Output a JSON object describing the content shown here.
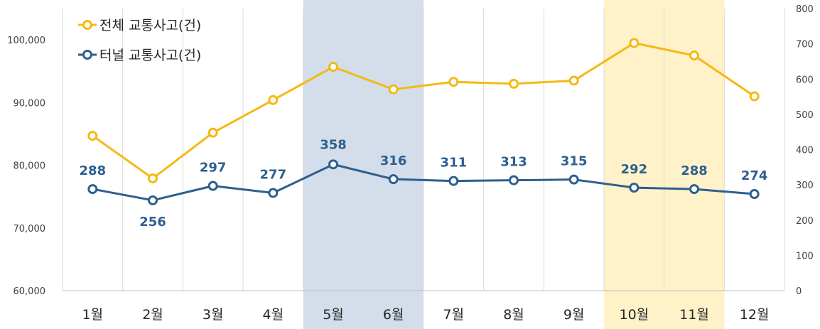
{
  "chart_data": {
    "type": "line",
    "title": "",
    "xlabel": "",
    "ylabel": "",
    "categories": [
      "1월",
      "2월",
      "3월",
      "4월",
      "5월",
      "6월",
      "7월",
      "8월",
      "9월",
      "10월",
      "11월",
      "12월"
    ],
    "series": [
      {
        "name": "전체 교통사고(건)",
        "axis": "left",
        "color": "#F5B914",
        "values": [
          84700,
          77900,
          85200,
          90400,
          95700,
          92100,
          93300,
          93000,
          93500,
          99500,
          97500,
          91000
        ],
        "data_labels": false
      },
      {
        "name": "터널 교통사고(건)",
        "axis": "right",
        "color": "#2E5F8E",
        "values": [
          288,
          256,
          297,
          277,
          358,
          316,
          311,
          313,
          315,
          292,
          288,
          274
        ],
        "data_labels": true
      }
    ],
    "y_left": {
      "min": 60000,
      "max": 100000,
      "ticks": [
        60000,
        70000,
        80000,
        90000,
        100000
      ],
      "tick_labels": [
        "60,000",
        "70,000",
        "80,000",
        "90,000",
        "100,000"
      ]
    },
    "y_right": {
      "min": 0,
      "max": 800,
      "ticks": [
        0,
        100,
        200,
        300,
        400,
        500,
        600,
        700,
        800
      ],
      "tick_labels": [
        "0",
        "100",
        "200",
        "300",
        "400",
        "500",
        "600",
        "700",
        "800"
      ]
    },
    "y_left_visible_max": 105000,
    "highlights": [
      {
        "categories": [
          "5월",
          "6월"
        ],
        "color": "#D3DEEA"
      },
      {
        "categories": [
          "10월",
          "11월"
        ],
        "color": "#FFF2C9"
      }
    ],
    "emphasized_label_index": 4,
    "grid": "vertical",
    "legend_position": "top-left"
  }
}
